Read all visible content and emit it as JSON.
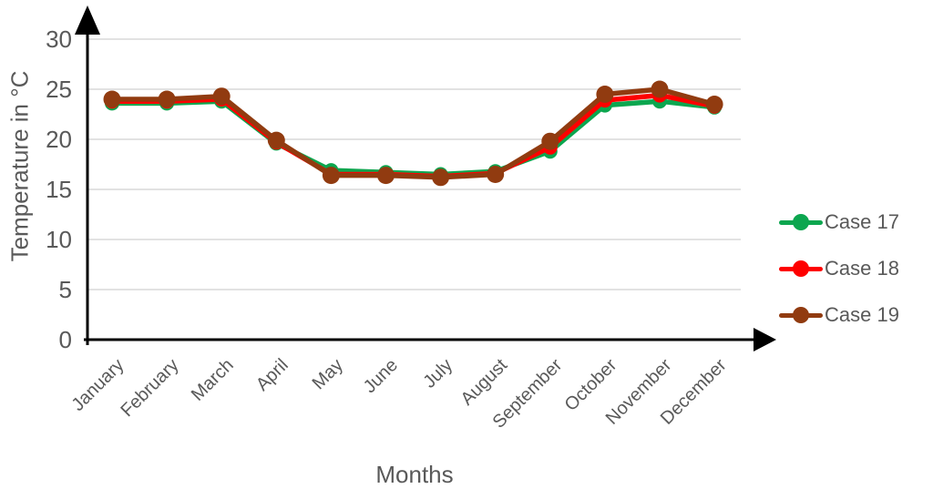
{
  "colors": {
    "grid": "#D9D9D9",
    "axis": "#000000",
    "text": "#595959",
    "background": "#FFFFFF"
  },
  "chart_data": {
    "type": "line",
    "title": "",
    "xlabel": "Months",
    "ylabel": "Temperature in °C",
    "categories": [
      "January",
      "February",
      "March",
      "April",
      "May",
      "June",
      "July",
      "August",
      "September",
      "October",
      "November",
      "December"
    ],
    "series": [
      {
        "name": "Case 17",
        "color": "#0CA64F",
        "values": [
          23.6,
          23.6,
          23.8,
          19.6,
          16.9,
          16.7,
          16.5,
          16.8,
          18.8,
          23.4,
          23.8,
          23.2
        ]
      },
      {
        "name": "Case 18",
        "color": "#FE0000",
        "values": [
          23.8,
          23.8,
          24.0,
          19.7,
          16.5,
          16.5,
          16.3,
          16.6,
          19.2,
          23.9,
          24.4,
          23.3
        ]
      },
      {
        "name": "Case 19",
        "color": "#913B10",
        "values": [
          24.0,
          24.0,
          24.3,
          19.9,
          16.4,
          16.4,
          16.2,
          16.5,
          19.8,
          24.5,
          25.0,
          23.5
        ]
      }
    ],
    "ylim": [
      0,
      30
    ],
    "yticks": [
      0,
      5,
      10,
      15,
      20,
      25,
      30
    ],
    "grid": true,
    "legend_position": "right",
    "axis_arrows": true
  }
}
